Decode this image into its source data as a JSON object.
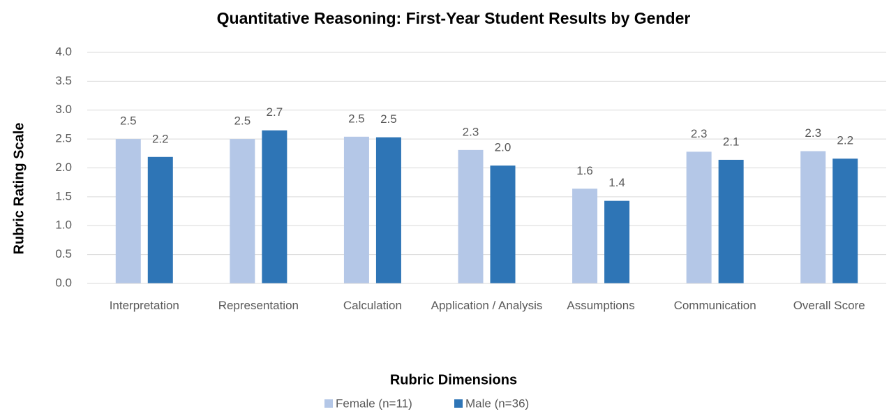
{
  "chart_data": {
    "type": "bar",
    "title": "Quantitative Reasoning: First-Year Student Results by Gender",
    "x_label": "Rubric Dimensions",
    "y_label": "Rubric Rating Scale",
    "categories": [
      "Interpretation",
      "Representation",
      "Calculation",
      "Application / Analysis",
      "Assumptions",
      "Communication",
      "Overall Score"
    ],
    "series": [
      {
        "name": "Female (n=11)",
        "color": "#b4c7e7",
        "values": [
          2.5,
          2.5,
          2.54,
          2.31,
          1.64,
          2.28,
          2.29
        ],
        "value_labels": [
          "2.5",
          "2.5",
          "2.5",
          "2.3",
          "1.6",
          "2.3",
          "2.3"
        ]
      },
      {
        "name": "Male (n=36)",
        "color": "#2e75b6",
        "values": [
          2.19,
          2.65,
          2.53,
          2.04,
          1.43,
          2.14,
          2.16
        ],
        "value_labels": [
          "2.2",
          "2.7",
          "2.5",
          "2.0",
          "1.4",
          "2.1",
          "2.2"
        ]
      }
    ],
    "ylim": [
      0,
      4
    ],
    "yticks": [
      {
        "value": 0,
        "label": "0.0"
      },
      0.5,
      {
        "value": 1,
        "label": "1.0"
      },
      1.5,
      {
        "value": 2,
        "label": "2.0"
      },
      2.5,
      {
        "value": 3,
        "label": "3.0"
      },
      3.5,
      {
        "value": 4,
        "label": "4.0"
      }
    ],
    "grid": true,
    "legend": "bottom"
  }
}
